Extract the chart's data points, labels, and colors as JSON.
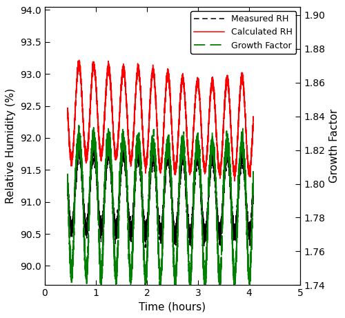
{
  "title": "",
  "xlabel": "Time (hours)",
  "ylabel_left": "Relative Humidity (%)",
  "ylabel_right": "Growth Factor",
  "xlim": [
    0,
    5
  ],
  "ylim_left": [
    89.7,
    94.05
  ],
  "ylim_right": [
    1.74,
    1.905
  ],
  "yticks_left": [
    90,
    90.5,
    91,
    91.5,
    92,
    92.5,
    93,
    93.5,
    94
  ],
  "yticks_right": [
    1.74,
    1.76,
    1.78,
    1.8,
    1.82,
    1.84,
    1.86,
    1.88,
    1.9
  ],
  "xticks": [
    0,
    1,
    2,
    3,
    4,
    5
  ],
  "legend_labels": [
    "Measured RH",
    "Calculated RH",
    "Growth Factor"
  ],
  "line_colors": [
    "black",
    "red",
    "green"
  ],
  "background_color": "#ffffff",
  "n_points": 8000,
  "t_start": 0.45,
  "t_end": 4.08,
  "freq": 3.45,
  "measured_baseline": 91.15,
  "measured_amplitude": 0.62,
  "calc_baseline": 92.3,
  "calc_amplitude": 0.72,
  "gf_baseline": 1.8,
  "gf_amplitude_up": 0.025,
  "gf_amplitude_down": 0.055
}
